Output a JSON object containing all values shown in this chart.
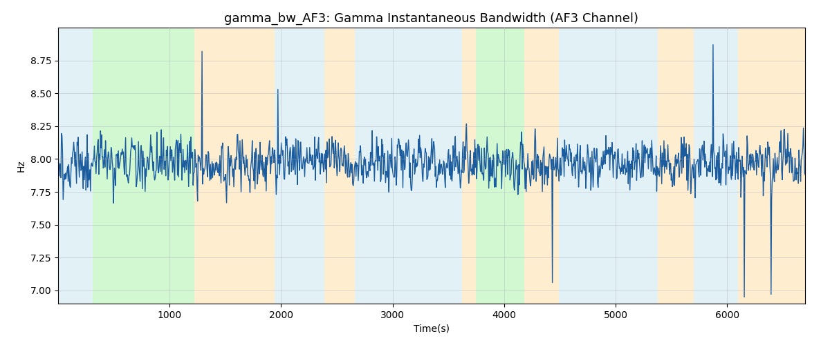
{
  "title": "gamma_bw_AF3: Gamma Instantaneous Bandwidth (AF3 Channel)",
  "xlabel": "Time(s)",
  "ylabel": "Hz",
  "ylim": [
    6.9,
    9.0
  ],
  "xlim": [
    0,
    6700
  ],
  "bg_bands": [
    {
      "xmin": 0,
      "xmax": 310,
      "color": "#add8e6",
      "alpha": 0.35
    },
    {
      "xmin": 310,
      "xmax": 1225,
      "color": "#90ee90",
      "alpha": 0.4
    },
    {
      "xmin": 1225,
      "xmax": 1940,
      "color": "#ffdca0",
      "alpha": 0.5
    },
    {
      "xmin": 1940,
      "xmax": 2390,
      "color": "#add8e6",
      "alpha": 0.35
    },
    {
      "xmin": 2390,
      "xmax": 2660,
      "color": "#ffdca0",
      "alpha": 0.5
    },
    {
      "xmin": 2660,
      "xmax": 3620,
      "color": "#add8e6",
      "alpha": 0.35
    },
    {
      "xmin": 3620,
      "xmax": 3750,
      "color": "#ffdca0",
      "alpha": 0.5
    },
    {
      "xmin": 3750,
      "xmax": 4180,
      "color": "#90ee90",
      "alpha": 0.4
    },
    {
      "xmin": 4180,
      "xmax": 4490,
      "color": "#ffdca0",
      "alpha": 0.5
    },
    {
      "xmin": 4490,
      "xmax": 5380,
      "color": "#add8e6",
      "alpha": 0.35
    },
    {
      "xmin": 5380,
      "xmax": 5700,
      "color": "#ffdca0",
      "alpha": 0.5
    },
    {
      "xmin": 5700,
      "xmax": 6100,
      "color": "#add8e6",
      "alpha": 0.35
    },
    {
      "xmin": 6100,
      "xmax": 6750,
      "color": "#ffdca0",
      "alpha": 0.5
    }
  ],
  "line_color": "#1b5c9e",
  "line_width": 1.0,
  "seed": 2023,
  "n_points": 1340,
  "mean": 7.97,
  "std": 0.1,
  "grid_color": "#b0b0c0",
  "grid_alpha": 0.6,
  "title_fontsize": 13,
  "spikes": [
    {
      "t": 1290,
      "v": 8.82
    },
    {
      "t": 1970,
      "v": 8.53
    },
    {
      "t": 4430,
      "v": 7.06
    },
    {
      "t": 5870,
      "v": 8.87
    },
    {
      "t": 6150,
      "v": 6.95
    },
    {
      "t": 6390,
      "v": 6.97
    }
  ]
}
